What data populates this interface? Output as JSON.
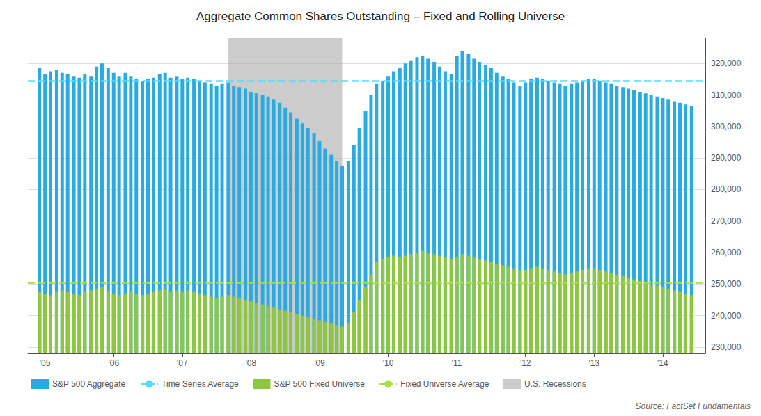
{
  "chart_data": {
    "type": "bar",
    "title": "Aggregate Common Shares Outstanding – Fixed and Rolling Universe",
    "annotations": [
      "Source: FactSet Fundamentals"
    ],
    "grid": true,
    "legend": "bottom",
    "xlim": [
      2004.75,
      2014.62
    ],
    "xticks": [
      {
        "value": 2005,
        "label": "'05"
      },
      {
        "value": 2006,
        "label": "'06"
      },
      {
        "value": 2007,
        "label": "'07"
      },
      {
        "value": 2008,
        "label": "'08"
      },
      {
        "value": 2009,
        "label": "'09"
      },
      {
        "value": 2010,
        "label": "'10"
      },
      {
        "value": 2011,
        "label": "'11"
      },
      {
        "value": 2012,
        "label": "'12"
      },
      {
        "value": 2013,
        "label": "'13"
      },
      {
        "value": 2014,
        "label": "'14"
      }
    ],
    "ylim": [
      228000,
      328000
    ],
    "yticks": [
      {
        "value": 230000,
        "label": "230,000"
      },
      {
        "value": 240000,
        "label": "240,000"
      },
      {
        "value": 250000,
        "label": "250,000"
      },
      {
        "value": 260000,
        "label": "260,000"
      },
      {
        "value": 270000,
        "label": "270,000"
      },
      {
        "value": 280000,
        "label": "280,000"
      },
      {
        "value": 290000,
        "label": "290,000"
      },
      {
        "value": 300000,
        "label": "300,000"
      },
      {
        "value": 310000,
        "label": "310,000"
      },
      {
        "value": 320000,
        "label": "320,000"
      }
    ],
    "x": [
      2004.92,
      2005.0,
      2005.08,
      2005.17,
      2005.25,
      2005.33,
      2005.42,
      2005.5,
      2005.58,
      2005.67,
      2005.75,
      2005.83,
      2005.92,
      2006.0,
      2006.08,
      2006.17,
      2006.25,
      2006.33,
      2006.42,
      2006.5,
      2006.58,
      2006.67,
      2006.75,
      2006.83,
      2006.92,
      2007.0,
      2007.08,
      2007.17,
      2007.25,
      2007.33,
      2007.42,
      2007.5,
      2007.58,
      2007.67,
      2007.75,
      2007.83,
      2007.92,
      2008.0,
      2008.08,
      2008.17,
      2008.25,
      2008.33,
      2008.42,
      2008.5,
      2008.58,
      2008.67,
      2008.75,
      2008.83,
      2008.92,
      2009.0,
      2009.08,
      2009.17,
      2009.25,
      2009.33,
      2009.42,
      2009.5,
      2009.58,
      2009.67,
      2009.75,
      2009.83,
      2009.92,
      2010.0,
      2010.08,
      2010.17,
      2010.25,
      2010.33,
      2010.42,
      2010.5,
      2010.58,
      2010.67,
      2010.75,
      2010.83,
      2010.92,
      2011.0,
      2011.08,
      2011.17,
      2011.25,
      2011.33,
      2011.42,
      2011.5,
      2011.58,
      2011.67,
      2011.75,
      2011.83,
      2011.92,
      2012.0,
      2012.08,
      2012.17,
      2012.25,
      2012.33,
      2012.42,
      2012.5,
      2012.58,
      2012.67,
      2012.75,
      2012.83,
      2012.92,
      2013.0,
      2013.08,
      2013.17,
      2013.25,
      2013.33,
      2013.42,
      2013.5,
      2013.58,
      2013.67,
      2013.75,
      2013.83,
      2013.92,
      2014.0,
      2014.08,
      2014.17,
      2014.25,
      2014.33,
      2014.42
    ],
    "series": [
      {
        "name": "S&P 500 Aggregate",
        "type": "bar",
        "color": "#29ABE2",
        "values": [
          318500,
          316500,
          317500,
          318000,
          317000,
          316500,
          316000,
          315500,
          316500,
          316000,
          319000,
          320000,
          318500,
          317000,
          316000,
          317000,
          316000,
          315000,
          314500,
          315000,
          315500,
          316500,
          317000,
          315500,
          316000,
          315000,
          315500,
          315000,
          314500,
          314000,
          313500,
          313000,
          313500,
          314000,
          313000,
          312500,
          312000,
          311000,
          310500,
          310000,
          309500,
          308500,
          307500,
          306000,
          304500,
          302500,
          301000,
          299500,
          298000,
          295500,
          293000,
          291000,
          289000,
          287500,
          289000,
          294000,
          299500,
          305000,
          310000,
          313500,
          314500,
          316000,
          317500,
          318500,
          320000,
          321000,
          322000,
          322500,
          321500,
          320500,
          319000,
          317500,
          316500,
          322500,
          324000,
          323000,
          321500,
          320500,
          319500,
          318500,
          317000,
          316000,
          315000,
          314000,
          313000,
          314000,
          315000,
          315500,
          315000,
          314500,
          314000,
          313500,
          313000,
          313500,
          314000,
          314500,
          315000,
          315000,
          314500,
          314000,
          313500,
          313000,
          312500,
          312000,
          311500,
          311000,
          310500,
          310000,
          309500,
          309000,
          308500,
          308000,
          307500,
          307000,
          306500
        ]
      },
      {
        "name": "Time Series Average",
        "type": "hline",
        "color": "#55DDFF",
        "line_style": "dashed",
        "value": 314500
      },
      {
        "name": "S&P 500 Fixed Universe",
        "type": "bar",
        "color": "#8DC63F",
        "values": [
          247500,
          247000,
          246500,
          247500,
          248000,
          247500,
          247000,
          246500,
          247500,
          248000,
          248500,
          249000,
          247500,
          247000,
          246500,
          247000,
          247500,
          247000,
          246500,
          247000,
          247500,
          248000,
          248500,
          247500,
          248000,
          247500,
          248000,
          247500,
          247000,
          246500,
          246000,
          245500,
          246000,
          246500,
          246000,
          245500,
          245000,
          244500,
          244000,
          243500,
          243000,
          242500,
          242000,
          241500,
          241000,
          240500,
          240000,
          239500,
          239000,
          238500,
          238000,
          237500,
          237000,
          236500,
          237500,
          241000,
          245000,
          249000,
          253000,
          257000,
          258000,
          258500,
          259000,
          258500,
          259000,
          259500,
          260000,
          260500,
          260000,
          259500,
          259000,
          258500,
          258000,
          258500,
          259500,
          259000,
          258500,
          258000,
          257500,
          257000,
          256500,
          256000,
          255500,
          255000,
          254500,
          254500,
          255000,
          255500,
          255000,
          254500,
          254000,
          253500,
          253000,
          253500,
          254000,
          254500,
          255000,
          255000,
          254500,
          254000,
          253500,
          253000,
          252500,
          252000,
          251500,
          251000,
          250500,
          250000,
          249500,
          249000,
          248500,
          248000,
          247500,
          247000,
          246500
        ]
      },
      {
        "name": "Fixed Universe Average",
        "type": "hline",
        "color": "#AADD44",
        "line_style": "dashed",
        "value": 250500
      },
      {
        "name": "U.S. Recessions",
        "type": "span",
        "color": "#aaaaaa",
        "range": [
          2007.67,
          2009.33
        ]
      }
    ]
  }
}
